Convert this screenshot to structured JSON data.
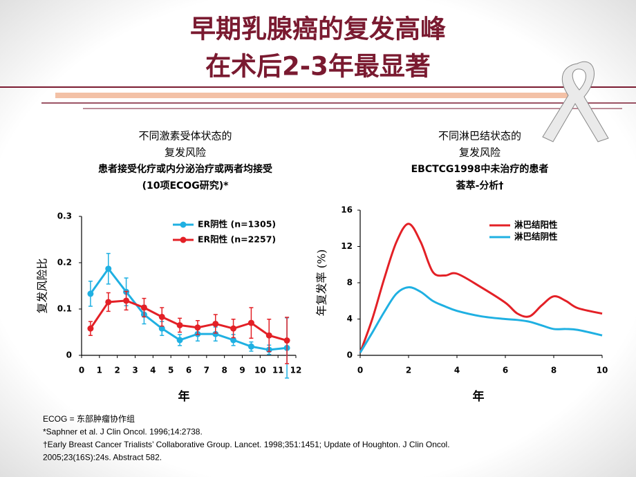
{
  "title": [
    "早期乳腺癌的复发高峰",
    "在术后2-3年最显著"
  ],
  "chart_data": [
    {
      "type": "line",
      "markers": true,
      "error_bars": true,
      "smooth": false,
      "title": [
        "不同激素受体状态的",
        "复发风险",
        "患者接受化疗或内分泌治疗或两者均接受",
        "(10项ECOG研究)*"
      ],
      "xlabel": "年",
      "ylabel": "复发风险比",
      "x": [
        0.5,
        1.5,
        2.5,
        3.5,
        4.5,
        5.5,
        6.5,
        7.5,
        8.5,
        9.5,
        10.5,
        11.5
      ],
      "xlim": [
        0,
        12
      ],
      "xticks": [
        0,
        1,
        2,
        3,
        4,
        5,
        6,
        7,
        8,
        9,
        10,
        11,
        12
      ],
      "ylim": [
        0,
        0.3
      ],
      "yticks": [
        0,
        0.1,
        0.2,
        0.3
      ],
      "series": [
        {
          "name": "ER阴性 (n=1305)",
          "color": "#1fb0e2",
          "values": [
            0.133,
            0.187,
            0.137,
            0.088,
            0.058,
            0.033,
            0.046,
            0.046,
            0.033,
            0.019,
            0.012,
            0.016
          ],
          "errors": [
            0.027,
            0.033,
            0.03,
            0.02,
            0.015,
            0.012,
            0.015,
            0.015,
            0.012,
            0.01,
            0.01,
            0.065
          ]
        },
        {
          "name": "ER阳性 (n=2257)",
          "color": "#e32026",
          "values": [
            0.058,
            0.115,
            0.118,
            0.103,
            0.083,
            0.065,
            0.06,
            0.068,
            0.058,
            0.07,
            0.043,
            0.032
          ],
          "errors": [
            0.015,
            0.02,
            0.02,
            0.02,
            0.02,
            0.015,
            0.015,
            0.02,
            0.02,
            0.033,
            0.035,
            0.05
          ]
        }
      ]
    },
    {
      "type": "line",
      "markers": false,
      "error_bars": false,
      "smooth": true,
      "title": [
        "不同淋巴结状态的",
        "复发风险",
        "EBCTCG1998中未治疗的患者",
        "荟萃-分析†"
      ],
      "xlabel": "年",
      "ylabel": "年复发率 (%)",
      "x": [
        0,
        0.5,
        1,
        1.5,
        2,
        2.5,
        3,
        3.5,
        4,
        5,
        6,
        6.5,
        7,
        7.5,
        8,
        8.5,
        9,
        10
      ],
      "xlim": [
        0,
        10
      ],
      "xticks": [
        0,
        2,
        4,
        6,
        8,
        10
      ],
      "ylim": [
        0,
        16
      ],
      "yticks": [
        0,
        4,
        8,
        12,
        16
      ],
      "series": [
        {
          "name": "淋巴结阳性",
          "color": "#e32026",
          "values": [
            0.3,
            4,
            8.5,
            12.5,
            14.5,
            12.5,
            9.2,
            8.8,
            9,
            7.5,
            5.8,
            4.6,
            4.3,
            5.5,
            6.5,
            6,
            5.2,
            4.6
          ]
        },
        {
          "name": "淋巴结阴性",
          "color": "#1fb0e2",
          "values": [
            0.3,
            2.5,
            4.8,
            6.8,
            7.5,
            7,
            6,
            5.4,
            4.9,
            4.3,
            4,
            3.9,
            3.7,
            3.3,
            2.9,
            2.9,
            2.8,
            2.2
          ]
        }
      ]
    }
  ],
  "footnotes": [
    "ECOG = 东部肿瘤协作组",
    "*Saphner et al. J Clin Oncol. 1996;14:2738.",
    "†Early Breast Cancer Trialists’ Collaborative Group. Lancet. 1998;351:1451; Update of Houghton. J Clin Oncol.",
    "2005;23(16S):24s. Abstract 582."
  ]
}
